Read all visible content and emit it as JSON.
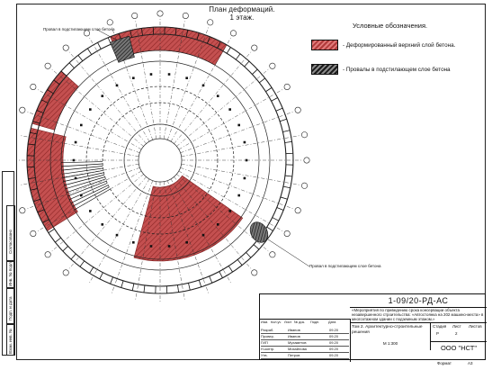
{
  "drawing": {
    "title_line1": "План деформаций.",
    "title_line2": "1 этаж.",
    "legend_title": "Условные обозначения.",
    "legend": [
      {
        "label": "- Деформированный верхний слой бетона.",
        "color": "#c04545"
      },
      {
        "label": "- Провалы в подстилающем слое бетона",
        "color": "#1a1a1a"
      }
    ],
    "note_top": "Провал в подстилающем слое бетона",
    "note_bottom": "Провал в подстилающем слое бетона",
    "accent_red": "#b03a3a"
  },
  "side_strip": {
    "labels": [
      "Согласовано",
      "Инв. № подл.",
      "Подп. и дата",
      "Взам. инв. №"
    ]
  },
  "stamp": {
    "code": "1-09/20-РД-АС",
    "description": "«Мероприятия по приведению срока консервации объекта незавершенного строительства: «Автостоянка на 202 машино-места» в многоэтажном здании с подземным этажом.»",
    "sheet_name": "Том 2. Архитектурно-строительные решения",
    "scale": "М 1:300",
    "stage_label": "Стадия",
    "stage_value": "Р",
    "sheet_label": "Лист",
    "sheet_value": "2",
    "sheets_label": "Листов",
    "organization": "ООО \"НСТ\"",
    "table_headers": [
      "Изм.",
      "Кол.уч",
      "Лист",
      "№ док.",
      "Подп.",
      "Дата"
    ],
    "rows": [
      {
        "role": "Разраб.",
        "name": "Иванов",
        "date": "09.20"
      },
      {
        "role": "Провер.",
        "name": "Иванов",
        "date": "09.20"
      },
      {
        "role": "ГИП",
        "name": "Мухаметов",
        "date": "09.20"
      },
      {
        "role": "Н.контр.",
        "name": "Михайлова",
        "date": "09.20"
      },
      {
        "role": "Утв.",
        "name": "Петров",
        "date": "09.20"
      }
    ]
  },
  "footer": {
    "format_label": "Формат",
    "format_value": "А3"
  }
}
